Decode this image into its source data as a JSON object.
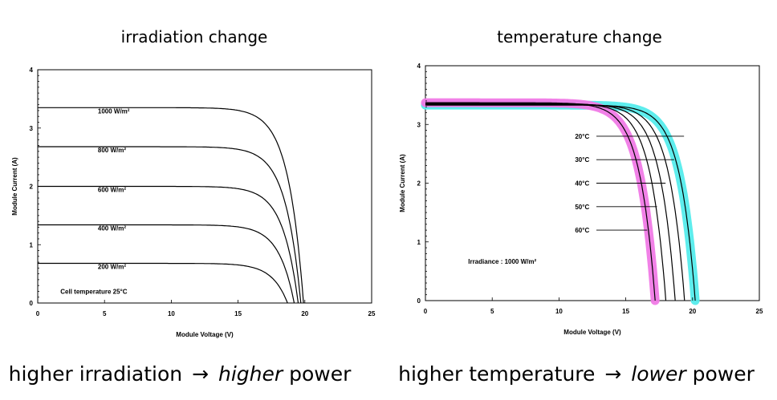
{
  "panels": {
    "left": {
      "title": "irradiation change",
      "caption": {
        "prefix": "higher irradiation",
        "arrow": "→",
        "emph": "higher",
        "suffix": "power"
      }
    },
    "right": {
      "title": "temperature change",
      "caption": {
        "prefix": "higher temperature",
        "arrow": "→",
        "emph": "lower",
        "suffix": "power"
      }
    }
  },
  "chart_data": [
    {
      "type": "line",
      "title": "irradiation change",
      "xlabel": "Module Voltage (V)",
      "ylabel": "Module Current (A)",
      "xlim": [
        0,
        25
      ],
      "ylim": [
        0,
        4
      ],
      "xticks": [
        "0",
        "5",
        "10",
        "15",
        "20",
        "25"
      ],
      "yticks": [
        "0",
        "1",
        "2",
        "3",
        "4"
      ],
      "grid": false,
      "annotation": "Cell temperature 25°C",
      "series": [
        {
          "name": "1000 W/m²",
          "isc": 3.35,
          "voc": 19.9
        },
        {
          "name": "800 W/m²",
          "isc": 2.68,
          "voc": 19.7
        },
        {
          "name": "600 W/m²",
          "isc": 2.0,
          "voc": 19.5
        },
        {
          "name": "400 W/m²",
          "isc": 1.34,
          "voc": 19.2
        },
        {
          "name": "200 W/m²",
          "isc": 0.68,
          "voc": 18.7
        }
      ]
    },
    {
      "type": "line",
      "title": "temperature change",
      "xlabel": "Module Voltage (V)",
      "ylabel": "Module Current (A)",
      "xlim": [
        0,
        25
      ],
      "ylim": [
        0,
        4
      ],
      "xticks": [
        "0",
        "5",
        "10",
        "15",
        "20",
        "25"
      ],
      "yticks": [
        "0",
        "1",
        "2",
        "3",
        "4"
      ],
      "grid": false,
      "annotation": "Irradiance : 1000 W/m²",
      "series": [
        {
          "name": "20°C",
          "isc": 3.33,
          "voc": 20.2,
          "highlight": "#55ecec"
        },
        {
          "name": "30°C",
          "isc": 3.34,
          "voc": 19.4
        },
        {
          "name": "40°C",
          "isc": 3.35,
          "voc": 18.7
        },
        {
          "name": "50°C",
          "isc": 3.36,
          "voc": 18.0
        },
        {
          "name": "60°C",
          "isc": 3.37,
          "voc": 17.2,
          "highlight": "#f07ae6"
        }
      ]
    }
  ]
}
